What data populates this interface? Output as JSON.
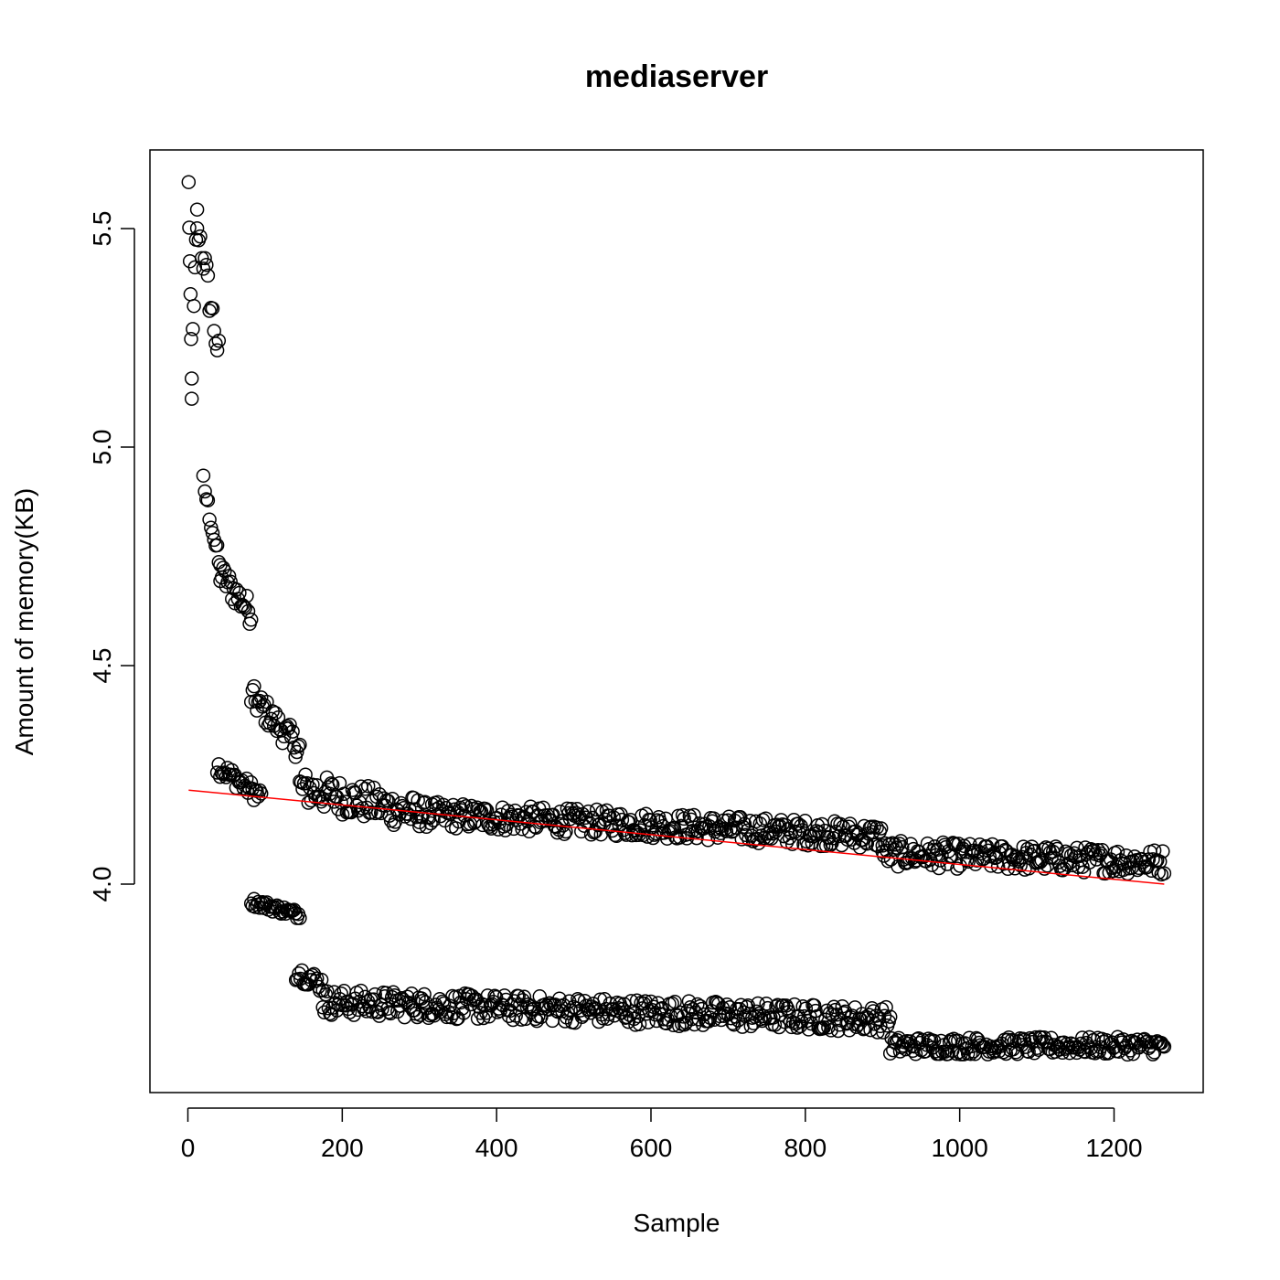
{
  "chart_data": {
    "type": "scatter",
    "title": "mediaserver",
    "xlabel": "Sample",
    "ylabel": "Amount of memory(KB)",
    "xlim": [
      0,
      1265
    ],
    "ylim": [
      3.6,
      5.65
    ],
    "x_ticks": [
      0,
      200,
      400,
      600,
      800,
      1000,
      1200
    ],
    "y_ticks": [
      4.0,
      4.5,
      5.0,
      5.5
    ],
    "x_tick_labels": [
      "0",
      "200",
      "400",
      "600",
      "800",
      "1000",
      "1200"
    ],
    "y_tick_labels": [
      "4.0",
      "4.5",
      "5.0",
      "5.5"
    ],
    "grid": false,
    "series": [
      {
        "marker": "open-circle",
        "color": "#000000",
        "segments": [
          {
            "x_start": 1,
            "x_end": 5,
            "y_start": 5.6,
            "y_end": 5.15,
            "noise": 0.02
          },
          {
            "x_start": 5,
            "x_end": 12,
            "y_start": 5.15,
            "y_end": 5.52,
            "noise": 0.06
          },
          {
            "x_start": 12,
            "x_end": 40,
            "y_start": 5.52,
            "y_end": 5.21,
            "noise": 0.04
          },
          {
            "x_start": 20,
            "x_end": 42,
            "y_start": 4.92,
            "y_end": 4.72,
            "noise": 0.02
          },
          {
            "x_start": 42,
            "x_end": 82,
            "y_start": 4.71,
            "y_end": 4.62,
            "noise": 0.03
          },
          {
            "x_start": 38,
            "x_end": 95,
            "y_start": 4.27,
            "y_end": 4.2,
            "noise": 0.02
          },
          {
            "x_start": 82,
            "x_end": 145,
            "y_start": 4.43,
            "y_end": 4.31,
            "noise": 0.03
          },
          {
            "x_start": 145,
            "x_end": 300,
            "y_start": 4.22,
            "y_end": 4.16,
            "noise": 0.04
          },
          {
            "x_start": 300,
            "x_end": 900,
            "y_start": 4.16,
            "y_end": 4.11,
            "noise": 0.03
          },
          {
            "x_start": 900,
            "x_end": 1265,
            "y_start": 4.07,
            "y_end": 4.05,
            "noise": 0.03
          },
          {
            "x_start": 82,
            "x_end": 145,
            "y_start": 3.96,
            "y_end": 3.93,
            "noise": 0.01
          },
          {
            "x_start": 140,
            "x_end": 175,
            "y_start": 3.8,
            "y_end": 3.77,
            "noise": 0.02
          },
          {
            "x_start": 175,
            "x_end": 910,
            "y_start": 3.73,
            "y_end": 3.69,
            "noise": 0.03
          },
          {
            "x_start": 910,
            "x_end": 1265,
            "y_start": 3.63,
            "y_end": 3.63,
            "noise": 0.02
          }
        ]
      },
      {
        "type": "line",
        "color": "#ff0000",
        "x": [
          1,
          1265
        ],
        "y": [
          4.215,
          4.0
        ]
      }
    ]
  }
}
